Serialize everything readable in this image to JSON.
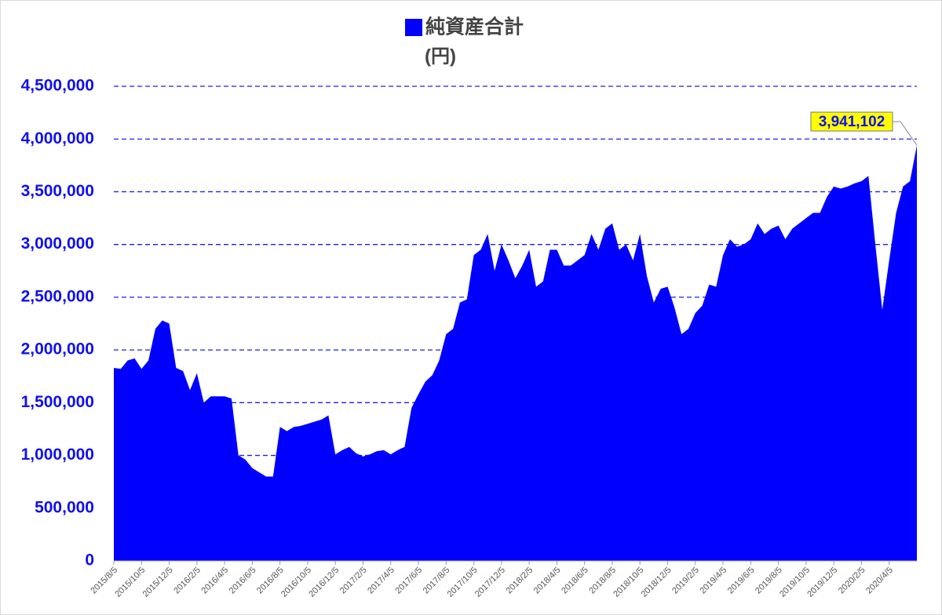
{
  "chart_data": {
    "type": "area",
    "y_label": "(円)",
    "categories": [
      "2015/8/5",
      null,
      null,
      null,
      "2015/10/5",
      null,
      null,
      null,
      "2015/12/5",
      null,
      null,
      null,
      "2016/2/5",
      null,
      null,
      null,
      "2016/4/5",
      null,
      null,
      null,
      "2016/6/5",
      null,
      null,
      null,
      "2016/8/5",
      null,
      null,
      null,
      "2016/10/5",
      null,
      null,
      null,
      "2016/12/5",
      null,
      null,
      null,
      "2017/2/5",
      null,
      null,
      null,
      "2017/4/5",
      null,
      null,
      null,
      "2017/6/5",
      null,
      null,
      null,
      "2017/8/5",
      null,
      null,
      null,
      "2017/10/5",
      null,
      null,
      null,
      "2017/12/5",
      null,
      null,
      null,
      "2018/2/5",
      null,
      null,
      null,
      "2018/4/5",
      null,
      null,
      null,
      "2018/6/5",
      null,
      null,
      null,
      "2018/8/5",
      null,
      null,
      null,
      "2018/10/5",
      null,
      null,
      null,
      "2018/12/5",
      null,
      null,
      null,
      "2019/2/5",
      null,
      null,
      null,
      "2019/4/5",
      null,
      null,
      null,
      "2019/6/5",
      null,
      null,
      null,
      "2019/8/5",
      null,
      null,
      null,
      "2019/10/5",
      null,
      null,
      null,
      "2019/12/5",
      null,
      null,
      null,
      "2020/2/5",
      null,
      null,
      null,
      "2020/4/5",
      null,
      null,
      null,
      null
    ],
    "series": [
      {
        "name": "純資産合計",
        "color": "#0000ff",
        "values": [
          1830000,
          1820000,
          1900000,
          1920000,
          1820000,
          1900000,
          2200000,
          2280000,
          2250000,
          1830000,
          1800000,
          1620000,
          1780000,
          1500000,
          1560000,
          1560000,
          1560000,
          1540000,
          1000000,
          960000,
          880000,
          840000,
          800000,
          800000,
          1270000,
          1230000,
          1270000,
          1280000,
          1300000,
          1320000,
          1340000,
          1380000,
          1010000,
          1050000,
          1080000,
          1020000,
          990000,
          1010000,
          1040000,
          1050000,
          1010000,
          1050000,
          1080000,
          1450000,
          1580000,
          1700000,
          1760000,
          1900000,
          2150000,
          2200000,
          2450000,
          2480000,
          2900000,
          2950000,
          3100000,
          2750000,
          3000000,
          2850000,
          2680000,
          2800000,
          2950000,
          2600000,
          2650000,
          2950000,
          2950000,
          2800000,
          2800000,
          2850000,
          2900000,
          3100000,
          2950000,
          3150000,
          3200000,
          2950000,
          3000000,
          2850000,
          3100000,
          2700000,
          2450000,
          2580000,
          2600000,
          2400000,
          2150000,
          2200000,
          2350000,
          2420000,
          2620000,
          2600000,
          2900000,
          3050000,
          2980000,
          3000000,
          3050000,
          3200000,
          3100000,
          3150000,
          3180000,
          3050000,
          3150000,
          3200000,
          3250000,
          3300000,
          3300000,
          3450000,
          3550000,
          3530000,
          3550000,
          3580000,
          3600000,
          3650000,
          3000000,
          2380000,
          2850000,
          3300000,
          3550000,
          3600000,
          3941102
        ],
        "value_labels": [
          null,
          null,
          null,
          null,
          null,
          null,
          null,
          null,
          null,
          null,
          null,
          null,
          null,
          null,
          null,
          null,
          null,
          null,
          null,
          null,
          null,
          null,
          null,
          null,
          null,
          null,
          null,
          null,
          null,
          null,
          null,
          null,
          null,
          null,
          null,
          null,
          null,
          null,
          null,
          null,
          null,
          null,
          null,
          null,
          null,
          null,
          null,
          null,
          null,
          null,
          null,
          null,
          null,
          null,
          null,
          null,
          null,
          null,
          null,
          null,
          null,
          null,
          null,
          null,
          null,
          null,
          null,
          null,
          null,
          null,
          null,
          null,
          null,
          null,
          null,
          null,
          null,
          null,
          null,
          null,
          null,
          null,
          null,
          null,
          null,
          null,
          null,
          null,
          null,
          null,
          null,
          null,
          null,
          null,
          null,
          null,
          null,
          null,
          null,
          null,
          null,
          null,
          null,
          null,
          null,
          null,
          null,
          null,
          null,
          null,
          null,
          null,
          null,
          null,
          null,
          null,
          "3,941,102"
        ]
      }
    ],
    "ylim": [
      0,
      4500000
    ],
    "yticks": [
      0,
      {
        "value": 500000,
        "label": "500,000"
      },
      {
        "value": 1000000,
        "label": "1,000,000"
      },
      {
        "value": 1500000,
        "label": "1,500,000"
      },
      {
        "value": 2000000,
        "label": "2,000,000"
      },
      {
        "value": 2500000,
        "label": "2,500,000"
      },
      {
        "value": 3000000,
        "label": "3,000,000"
      },
      {
        "value": 3500000,
        "label": "3,500,000"
      },
      {
        "value": 4000000,
        "label": "4,000,000"
      },
      {
        "value": 4500000,
        "label": "4,500,000"
      }
    ],
    "grid": true,
    "legend": "top"
  }
}
